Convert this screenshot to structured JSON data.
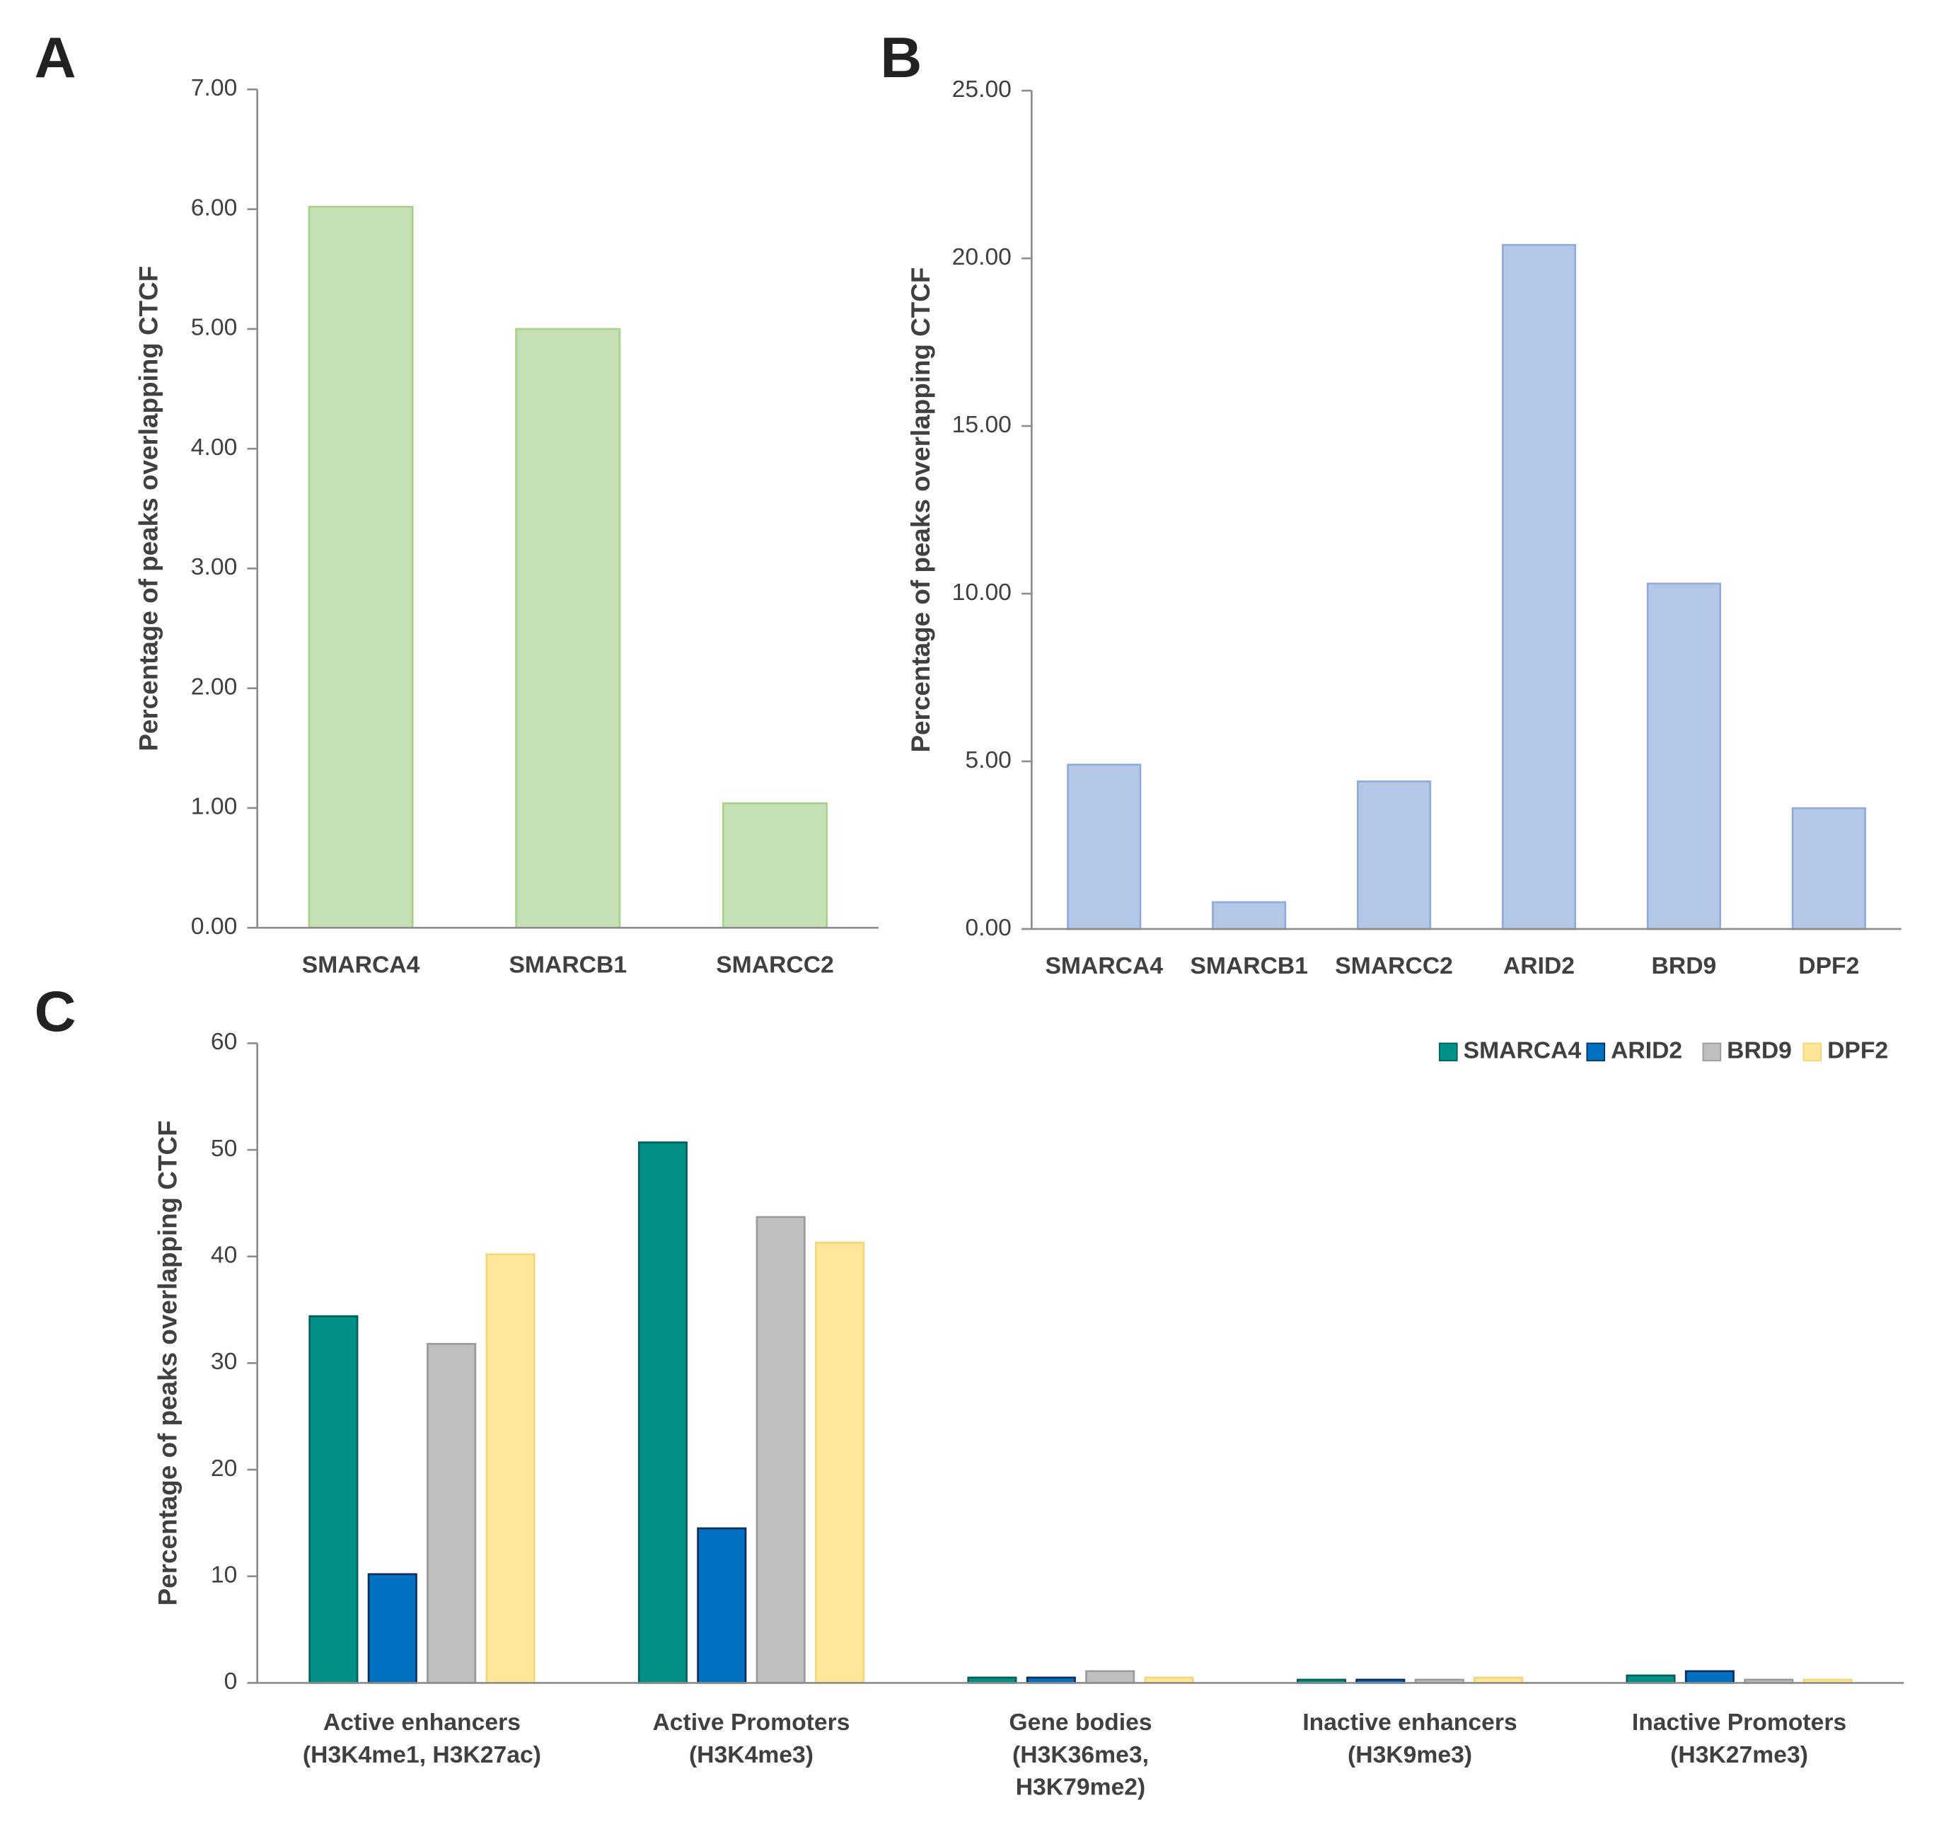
{
  "chart_data": [
    {
      "type": "bar",
      "panel_label": "A",
      "y_label": "Percentage of peaks overlapping CTCF",
      "categories": [
        "SMARCA4",
        "SMARCB1",
        "SMARCC2"
      ],
      "values": [
        6.02,
        5.0,
        1.04
      ],
      "color": "#c5e0b4",
      "ylim": [
        0,
        7
      ],
      "yticks": [
        {
          "value": 0,
          "label": "0.00"
        },
        {
          "value": 1,
          "label": "1.00"
        },
        {
          "value": 2,
          "label": "2.00"
        },
        {
          "value": 3,
          "label": "3.00"
        },
        {
          "value": 4,
          "label": "4.00"
        },
        {
          "value": 5,
          "label": "5.00"
        },
        {
          "value": 6,
          "label": "6.00"
        },
        {
          "value": 7,
          "label": "7.00"
        }
      ]
    },
    {
      "type": "bar",
      "panel_label": "B",
      "y_label": "Percentage of peaks overlapping CTCF",
      "categories": [
        "SMARCA4",
        "SMARCB1",
        "SMARCC2",
        "ARID2",
        "BRD9",
        "DPF2"
      ],
      "values": [
        4.9,
        0.8,
        4.4,
        20.4,
        10.3,
        3.6
      ],
      "color": "#b4c7e7",
      "ylim": [
        0,
        25
      ],
      "yticks": [
        {
          "value": 0,
          "label": "0.00"
        },
        {
          "value": 5,
          "label": "5.00"
        },
        {
          "value": 10,
          "label": "10.00"
        },
        {
          "value": 15,
          "label": "15.00"
        },
        {
          "value": 20,
          "label": "20.00"
        },
        {
          "value": 25,
          "label": "25.00"
        }
      ]
    },
    {
      "type": "grouped-bar",
      "panel_label": "C",
      "y_label": "Percentage of peaks overlapping CTCF",
      "categories": [
        [
          "Active enhancers",
          "(H3K4me1, H3K27ac)"
        ],
        [
          "Active Promoters",
          "(H3K4me3)"
        ],
        [
          "Gene bodies",
          "(H3K36me3,",
          "H3K79me2)"
        ],
        [
          "Inactive enhancers",
          "(H3K9me3)"
        ],
        [
          "Inactive Promoters",
          "(H3K27me3)"
        ]
      ],
      "series": [
        {
          "name": "SMARCA4",
          "color": "#009088",
          "values": [
            34.4,
            50.7,
            0.5,
            0.3,
            0.7
          ]
        },
        {
          "name": "ARID2",
          "color": "#0070c0",
          "values": [
            10.2,
            14.5,
            0.5,
            0.3,
            1.1
          ]
        },
        {
          "name": "BRD9",
          "color": "#bfbfbf",
          "values": [
            31.8,
            43.7,
            1.1,
            0.3,
            0.3
          ]
        },
        {
          "name": "DPF2",
          "color": "#ffe699",
          "values": [
            40.2,
            41.3,
            0.5,
            0.5,
            0.3
          ]
        }
      ],
      "ylim": [
        0,
        60
      ],
      "yticks": [
        0,
        10,
        20,
        30,
        40,
        50,
        60
      ],
      "legend": "top-right"
    }
  ]
}
